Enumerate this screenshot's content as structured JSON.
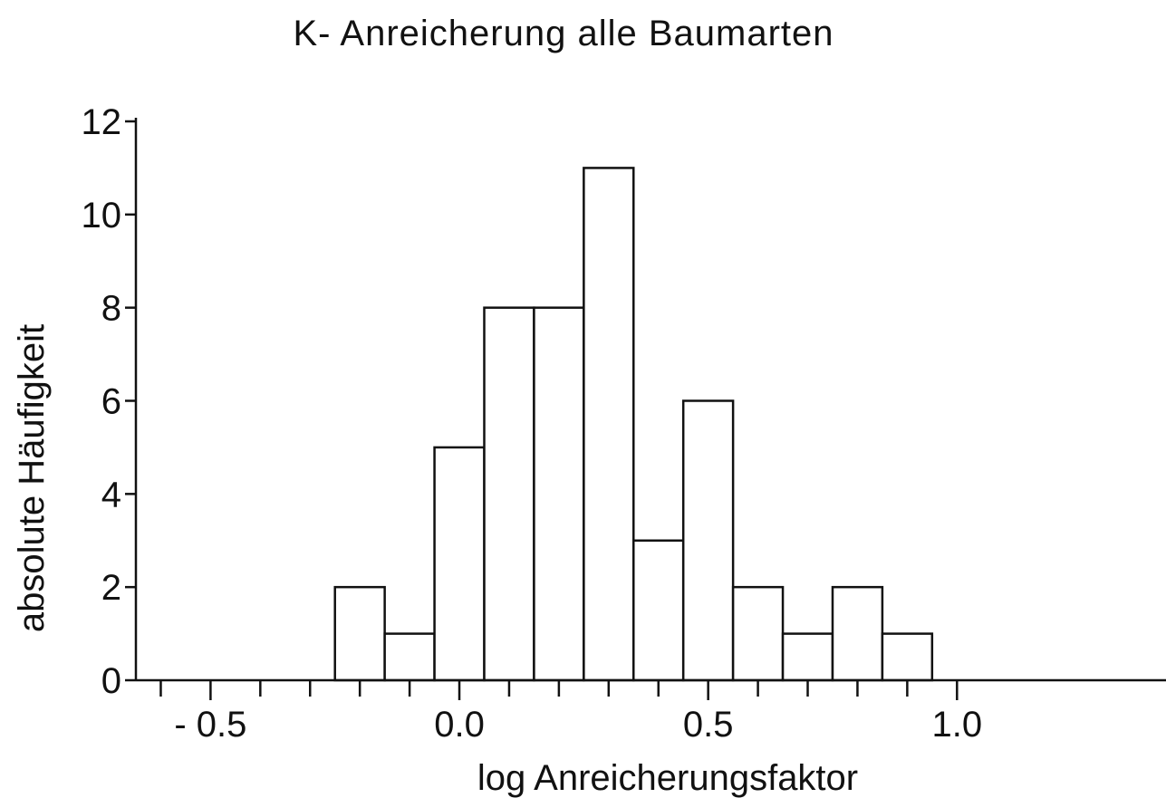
{
  "chart_data": {
    "type": "bar",
    "title": "K- Anreicherung   alle Baumarten",
    "xlabel": "log  Anreicherungsfaktor",
    "ylabel": "absolute  Häufigkeit",
    "xlim": [
      -0.65,
      1.42
    ],
    "ylim": [
      0,
      12
    ],
    "bin_width": 0.1,
    "bins": [
      {
        "center": -0.2,
        "count": 2
      },
      {
        "center": -0.1,
        "count": 1
      },
      {
        "center": 0.0,
        "count": 5
      },
      {
        "center": 0.1,
        "count": 8
      },
      {
        "center": 0.2,
        "count": 8
      },
      {
        "center": 0.3,
        "count": 11
      },
      {
        "center": 0.4,
        "count": 3
      },
      {
        "center": 0.5,
        "count": 6
      },
      {
        "center": 0.6,
        "count": 2
      },
      {
        "center": 0.7,
        "count": 1
      },
      {
        "center": 0.8,
        "count": 2
      },
      {
        "center": 0.9,
        "count": 1
      }
    ],
    "x_ticks_major": [
      {
        "value": -0.5,
        "label": "- 0.5"
      },
      {
        "value": 0.0,
        "label": "0.0"
      },
      {
        "value": 0.5,
        "label": "0.5"
      },
      {
        "value": 1.0,
        "label": "1.0"
      }
    ],
    "x_ticks_minor": [
      -0.6,
      -0.4,
      -0.3,
      -0.2,
      -0.1,
      0.1,
      0.2,
      0.3,
      0.4,
      0.6,
      0.7,
      0.8,
      0.9
    ],
    "y_ticks": [
      {
        "value": 0,
        "label": "0"
      },
      {
        "value": 2,
        "label": "2"
      },
      {
        "value": 4,
        "label": "4"
      },
      {
        "value": 6,
        "label": "6"
      },
      {
        "value": 8,
        "label": "8"
      },
      {
        "value": 10,
        "label": "10"
      },
      {
        "value": 12,
        "label": "12"
      }
    ],
    "grid": false,
    "legend": "none",
    "colors": {
      "ink": "#111111",
      "fill": "#ffffff"
    }
  }
}
